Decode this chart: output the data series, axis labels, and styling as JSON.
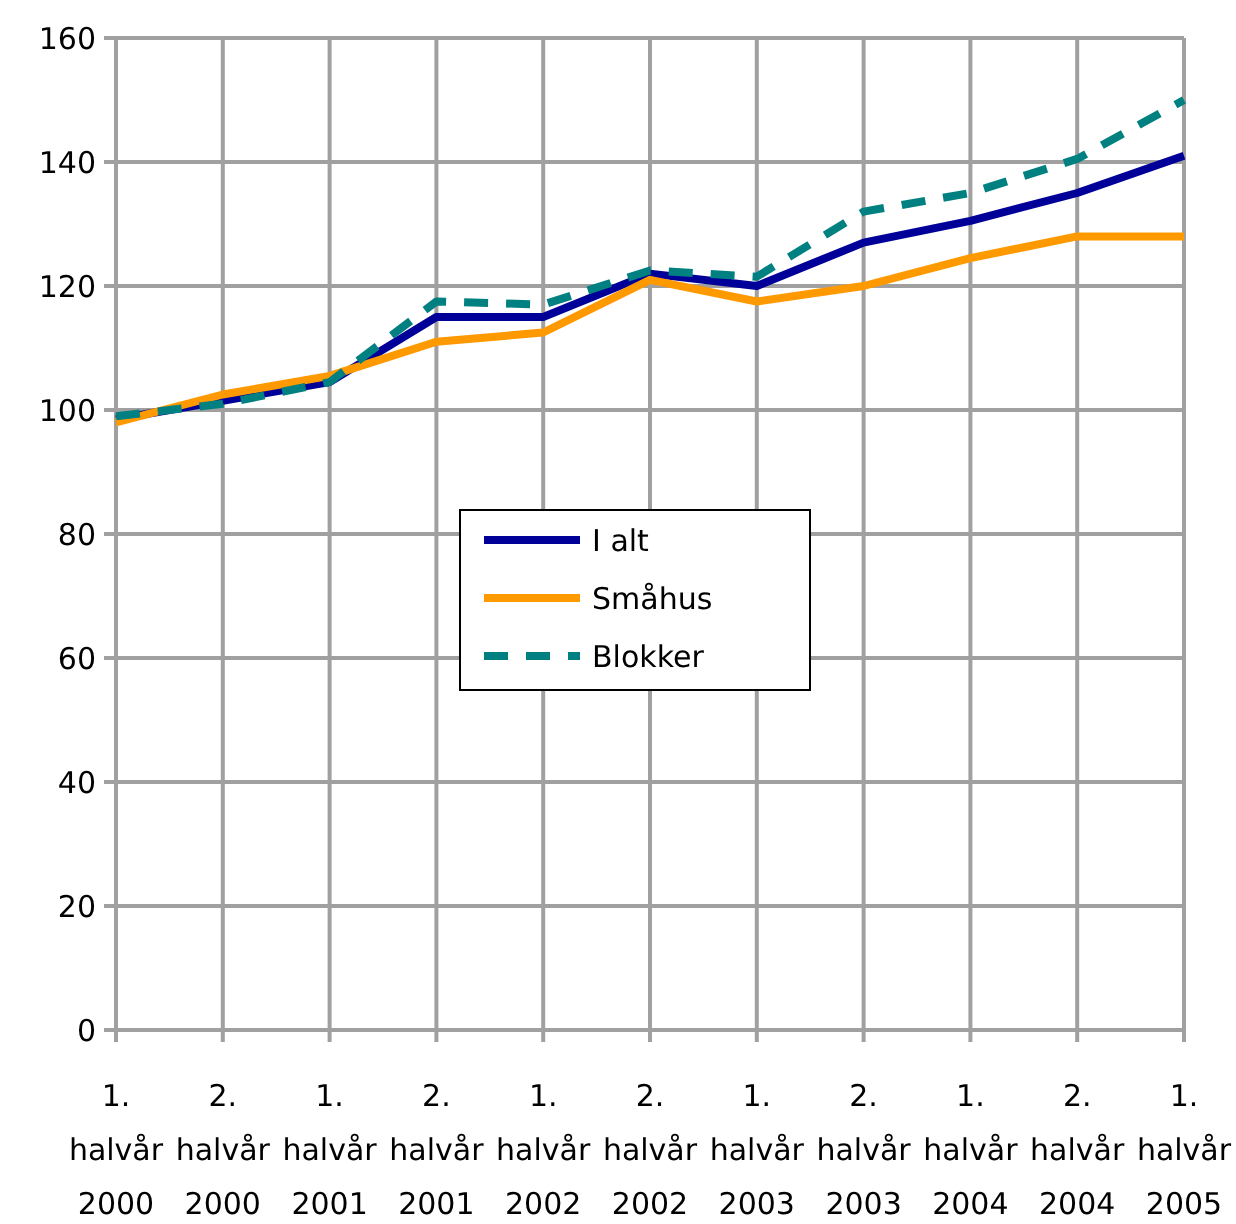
{
  "chart_data": {
    "type": "line",
    "categories": [
      "1. halvår 2000",
      "2. halvår 2000",
      "1. halvår 2001",
      "2. halvår 2001",
      "1. halvår 2002",
      "2. halvår 2002",
      "1. halvår 2003",
      "2. halvår 2003",
      "1. halvår 2004",
      "2. halvår 2004",
      "1. halvår 2005"
    ],
    "series": [
      {
        "name": "I alt",
        "color": "#000099",
        "values": [
          98.5,
          101.5,
          104.5,
          115,
          115,
          122,
          120,
          127,
          130.5,
          135,
          141
        ]
      },
      {
        "name": "Småhus",
        "color": "#ff9900",
        "values": [
          98,
          102.5,
          105.5,
          111,
          112.5,
          121,
          117.5,
          120,
          124.5,
          128,
          128
        ]
      },
      {
        "name": "Blokker",
        "color": "#008080",
        "line_style": "dashed",
        "values": [
          99,
          101,
          104.5,
          117.5,
          117,
          122.5,
          121.5,
          132,
          135,
          140.5,
          150
        ]
      }
    ],
    "ylim": [
      0,
      160
    ],
    "yticks": [
      0,
      20,
      40,
      60,
      80,
      100,
      120,
      140,
      160
    ],
    "grid": true,
    "legend": "center",
    "marker": "none"
  }
}
